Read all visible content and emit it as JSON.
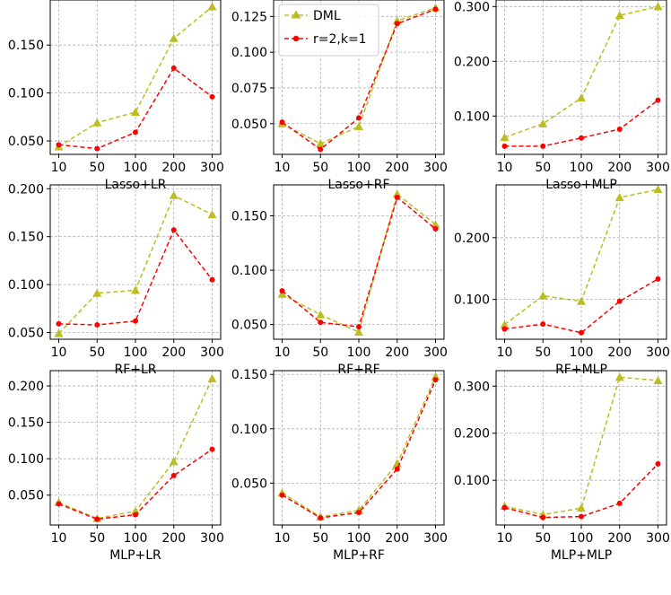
{
  "legend": {
    "location": "upper-left of middle-top panel",
    "entries": [
      {
        "label": "DML",
        "color": "#bcbd22",
        "marker": "triangle",
        "linestyle": "dashed"
      },
      {
        "label": "r=2,k=1",
        "color": "#ff0000",
        "marker": "circle",
        "linestyle": "dashed"
      }
    ]
  },
  "chart_data": [
    {
      "type": "line",
      "title": "",
      "xlabel": "Lasso+LR",
      "ylabel": "",
      "categories": [
        "10",
        "50",
        "100",
        "200",
        "300"
      ],
      "ylim": [
        0.036,
        0.197
      ],
      "yticks": [
        0.05,
        0.1,
        0.15
      ],
      "ytick_labels": [
        "0.050",
        "0.100",
        "0.150"
      ],
      "grid": true,
      "series": [
        {
          "name": "DML",
          "values": [
            0.044,
            0.069,
            0.08,
            0.157,
            0.19
          ]
        },
        {
          "name": "r=2,k=1",
          "values": [
            0.046,
            0.042,
            0.059,
            0.126,
            0.096
          ]
        }
      ]
    },
    {
      "type": "line",
      "title": "",
      "xlabel": "Lasso+RF",
      "ylabel": "",
      "categories": [
        "10",
        "50",
        "100",
        "200",
        "300"
      ],
      "ylim": [
        0.0285,
        0.1365
      ],
      "yticks": [
        0.05,
        0.075,
        0.1,
        0.125
      ],
      "ytick_labels": [
        "0.050",
        "0.075",
        "0.100",
        "0.125"
      ],
      "grid": true,
      "series": [
        {
          "name": "DML",
          "values": [
            0.05,
            0.036,
            0.048,
            0.122,
            0.131
          ]
        },
        {
          "name": "r=2,k=1",
          "values": [
            0.051,
            0.032,
            0.054,
            0.12,
            0.13
          ]
        }
      ]
    },
    {
      "type": "line",
      "title": "",
      "xlabel": "Lasso+MLP",
      "ylabel": "",
      "categories": [
        "10",
        "50",
        "100",
        "200",
        "300"
      ],
      "ylim": [
        0.03,
        0.312
      ],
      "yticks": [
        0.1,
        0.2,
        0.3
      ],
      "ytick_labels": [
        "0.100",
        "0.200",
        "0.300"
      ],
      "grid": true,
      "series": [
        {
          "name": "DML",
          "values": [
            0.061,
            0.086,
            0.133,
            0.284,
            0.3
          ]
        },
        {
          "name": "r=2,k=1",
          "values": [
            0.045,
            0.045,
            0.06,
            0.076,
            0.129
          ]
        }
      ]
    },
    {
      "type": "line",
      "title": "",
      "xlabel": "RF+LR",
      "ylabel": "",
      "categories": [
        "10",
        "50",
        "100",
        "200",
        "300"
      ],
      "ylim": [
        0.043,
        0.204
      ],
      "yticks": [
        0.05,
        0.1,
        0.15,
        0.2
      ],
      "ytick_labels": [
        "0.050",
        "0.100",
        "0.150",
        "0.200"
      ],
      "grid": true,
      "series": [
        {
          "name": "DML",
          "values": [
            0.049,
            0.091,
            0.094,
            0.193,
            0.173
          ]
        },
        {
          "name": "r=2,k=1",
          "values": [
            0.059,
            0.058,
            0.062,
            0.157,
            0.105
          ]
        }
      ]
    },
    {
      "type": "line",
      "title": "",
      "xlabel": "RF+RF",
      "ylabel": "",
      "categories": [
        "10",
        "50",
        "100",
        "200",
        "300"
      ],
      "ylim": [
        0.0365,
        0.1785
      ],
      "yticks": [
        0.05,
        0.1,
        0.15
      ],
      "ytick_labels": [
        "0.050",
        "0.100",
        "0.150"
      ],
      "grid": true,
      "series": [
        {
          "name": "DML",
          "values": [
            0.078,
            0.059,
            0.043,
            0.17,
            0.142
          ]
        },
        {
          "name": "r=2,k=1",
          "values": [
            0.081,
            0.052,
            0.048,
            0.167,
            0.138
          ]
        }
      ]
    },
    {
      "type": "line",
      "title": "",
      "xlabel": "RF+MLP",
      "ylabel": "",
      "categories": [
        "10",
        "50",
        "100",
        "200",
        "300"
      ],
      "ylim": [
        0.0355,
        0.2855
      ],
      "yticks": [
        0.1,
        0.2
      ],
      "ytick_labels": [
        "0.100",
        "0.200"
      ],
      "grid": true,
      "series": [
        {
          "name": "DML",
          "values": [
            0.059,
            0.106,
            0.097,
            0.265,
            0.278
          ]
        },
        {
          "name": "r=2,k=1",
          "values": [
            0.052,
            0.06,
            0.046,
            0.097,
            0.133
          ]
        }
      ]
    },
    {
      "type": "line",
      "title": "",
      "xlabel": "MLP+LR",
      "ylabel": "",
      "categories": [
        "10",
        "50",
        "100",
        "200",
        "300"
      ],
      "ylim": [
        0.009,
        0.221
      ],
      "yticks": [
        0.05,
        0.1,
        0.15,
        0.2
      ],
      "ytick_labels": [
        "0.050",
        "0.100",
        "0.150",
        "0.200"
      ],
      "grid": true,
      "series": [
        {
          "name": "DML",
          "values": [
            0.04,
            0.018,
            0.028,
            0.096,
            0.21
          ]
        },
        {
          "name": "r=2,k=1",
          "values": [
            0.038,
            0.017,
            0.023,
            0.077,
            0.113
          ]
        }
      ]
    },
    {
      "type": "line",
      "title": "",
      "xlabel": "MLP+RF",
      "ylabel": "",
      "categories": [
        "10",
        "50",
        "100",
        "200",
        "300"
      ],
      "ylim": [
        0.0115,
        0.1535
      ],
      "yticks": [
        0.05,
        0.1,
        0.15
      ],
      "ytick_labels": [
        "0.050",
        "0.100",
        "0.150"
      ],
      "grid": true,
      "series": [
        {
          "name": "DML",
          "values": [
            0.041,
            0.019,
            0.025,
            0.068,
            0.148
          ]
        },
        {
          "name": "r=2,k=1",
          "values": [
            0.039,
            0.018,
            0.023,
            0.063,
            0.145
          ]
        }
      ]
    },
    {
      "type": "line",
      "title": "",
      "xlabel": "MLP+MLP",
      "ylabel": "",
      "categories": [
        "10",
        "50",
        "100",
        "200",
        "300"
      ],
      "ylim": [
        0.005,
        0.333
      ],
      "yticks": [
        0.1,
        0.2,
        0.3
      ],
      "ytick_labels": [
        "0.100",
        "0.200",
        "0.300"
      ],
      "grid": true,
      "series": [
        {
          "name": "DML",
          "values": [
            0.045,
            0.027,
            0.041,
            0.319,
            0.312
          ]
        },
        {
          "name": "r=2,k=1",
          "values": [
            0.042,
            0.021,
            0.023,
            0.051,
            0.135
          ]
        }
      ]
    }
  ]
}
